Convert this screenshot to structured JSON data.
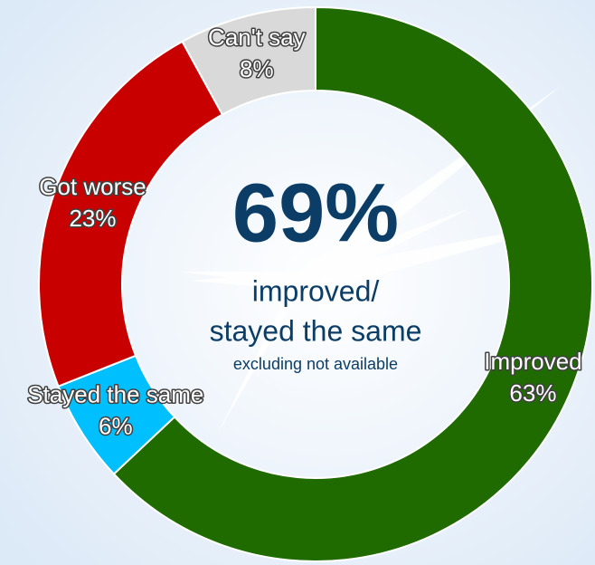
{
  "chart_data": {
    "type": "donut",
    "categories": [
      "Improved",
      "Stayed the same",
      "Got worse",
      "Can't say"
    ],
    "values": [
      63,
      6,
      23,
      8
    ],
    "value_labels": [
      "63%",
      "6%",
      "23%",
      "8%"
    ],
    "colors": [
      "#1f6b00",
      "#00bfff",
      "#c80000",
      "#d9d9d9"
    ],
    "annotations": [
      "69%",
      "improved/",
      "stayed the same",
      "excluding not available"
    ]
  }
}
